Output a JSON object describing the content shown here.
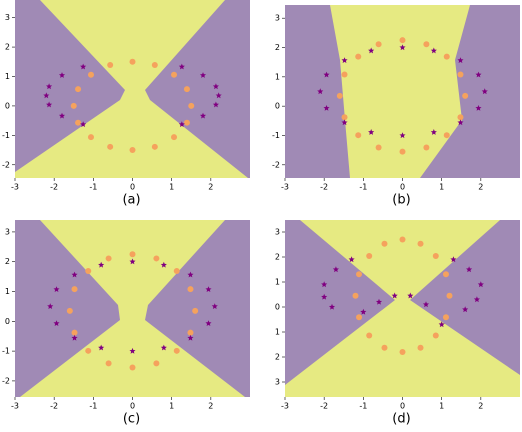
{
  "chart_data": [
    {
      "type": "scatter",
      "caption": "(a)",
      "xlim": [
        -3,
        3
      ],
      "ylim": [
        -2.45,
        3.6
      ],
      "xticks": [
        -3,
        -2,
        -1,
        0,
        1,
        2
      ],
      "yticks": [
        -2,
        -1,
        0,
        1,
        2,
        3
      ],
      "series": [
        {
          "color": "#f5a25d",
          "marker": "circle",
          "x": [
            1.5,
            1.39,
            1.06,
            0.57,
            0,
            -0.57,
            -1.06,
            -1.39,
            -1.5,
            -1.39,
            -1.06,
            -0.57,
            0,
            0.57,
            1.06,
            1.39
          ],
          "y": [
            0,
            0.57,
            1.06,
            1.39,
            1.5,
            1.39,
            1.06,
            0.57,
            0,
            -0.57,
            -1.06,
            -1.39,
            -1.5,
            -1.39,
            -1.06,
            -0.57
          ]
        },
        {
          "color": "#800080",
          "marker": "star",
          "x": [
            -1.26,
            -1.8,
            -2.13,
            -2.2,
            -2.13,
            -1.8,
            -1.26,
            1.26,
            1.8,
            2.13,
            2.2,
            2.13,
            1.8,
            1.26
          ],
          "y": [
            1.33,
            1.04,
            0.66,
            0.35,
            0.04,
            -0.34,
            -0.63,
            1.33,
            1.04,
            0.66,
            0.35,
            0.04,
            -0.34,
            -0.63
          ]
        }
      ]
    },
    {
      "type": "scatter",
      "caption": "(b)",
      "xlim": [
        -3,
        3
      ],
      "ylim": [
        -2.45,
        3.45
      ],
      "xticks": [
        -3,
        -2,
        -1,
        0,
        1,
        2
      ],
      "yticks": [
        -2,
        -1,
        0,
        1,
        2,
        3
      ],
      "series": [
        {
          "color": "#f5a25d",
          "marker": "circle",
          "x": [
            1.6,
            1.48,
            1.13,
            0.61,
            0,
            -0.61,
            -1.13,
            -1.48,
            -1.6,
            -1.48,
            -1.13,
            -0.61,
            0,
            0.61,
            1.13,
            1.48
          ],
          "y": [
            0.35,
            1.08,
            1.69,
            2.11,
            2.25,
            2.11,
            1.69,
            1.08,
            0.35,
            -0.38,
            -0.99,
            -1.41,
            -1.55,
            -1.41,
            -0.99,
            -0.38
          ]
        },
        {
          "color": "#800080",
          "marker": "star",
          "x": [
            2.1,
            1.94,
            1.48,
            0.8,
            0,
            -0.8,
            -1.48,
            -1.94,
            -2.1,
            -1.94,
            -1.48,
            -0.8,
            0,
            0.8,
            1.48,
            1.94
          ],
          "y": [
            0.5,
            1.07,
            1.56,
            1.89,
            2.0,
            1.89,
            1.56,
            1.07,
            0.5,
            -0.07,
            -0.56,
            -0.89,
            -1.0,
            -0.89,
            -0.56,
            -0.07
          ]
        }
      ]
    },
    {
      "type": "scatter",
      "caption": "(c)",
      "xlim": [
        -3,
        3
      ],
      "ylim": [
        -2.54,
        3.4
      ],
      "xticks": [
        -3,
        -2,
        -1,
        0,
        1,
        2
      ],
      "yticks": [
        -2,
        -1,
        0,
        1,
        2,
        3
      ],
      "series": [
        {
          "color": "#f5a25d",
          "marker": "circle",
          "x": [
            1.6,
            1.48,
            1.13,
            0.61,
            0,
            -0.61,
            -1.13,
            -1.48,
            -1.6,
            -1.48,
            -1.13,
            -0.61,
            0,
            0.61,
            1.13,
            1.48
          ],
          "y": [
            0.35,
            1.08,
            1.69,
            2.11,
            2.25,
            2.11,
            1.69,
            1.08,
            0.35,
            -0.38,
            -0.99,
            -1.41,
            -1.55,
            -1.41,
            -0.99,
            -0.38
          ]
        },
        {
          "color": "#800080",
          "marker": "star",
          "x": [
            2.1,
            1.94,
            1.48,
            0.8,
            0,
            -0.8,
            -1.48,
            -1.94,
            -2.1,
            -1.94,
            -1.48,
            -0.8,
            0,
            0.8,
            1.48,
            1.94
          ],
          "y": [
            0.5,
            1.07,
            1.56,
            1.89,
            2.0,
            1.89,
            1.56,
            1.07,
            0.5,
            -0.07,
            -0.56,
            -0.89,
            -1.0,
            -0.89,
            -0.56,
            -0.07
          ]
        }
      ]
    },
    {
      "type": "scatter",
      "caption": "(d)",
      "xlim": [
        -3,
        3
      ],
      "ylim": [
        -3.6,
        3.48
      ],
      "xticks": [
        -3,
        -2,
        -1,
        0,
        1,
        2
      ],
      "yticks": [
        3,
        2,
        1,
        0,
        {
          "value": -1,
          "label": "1"
        },
        {
          "value": -2,
          "label": "2"
        },
        {
          "value": -3,
          "label": "3"
        }
      ],
      "series": [
        {
          "color": "#f5a25d",
          "marker": "circle",
          "x": [
            1.2,
            1.11,
            0.85,
            0.46,
            0,
            -0.46,
            -0.85,
            -1.11,
            -1.2,
            -1.11,
            -0.85,
            -0.46,
            0,
            0.46,
            0.85,
            1.11
          ],
          "y": [
            0.45,
            1.31,
            2.04,
            2.53,
            2.7,
            2.53,
            2.04,
            1.31,
            0.45,
            -0.41,
            -1.14,
            -1.63,
            -1.8,
            -1.63,
            -1.14,
            -0.41
          ]
        },
        {
          "color": "#800080",
          "marker": "star",
          "x": [
            -1.3,
            -1.7,
            -2.0,
            -2.0,
            -1.8,
            1.3,
            1.7,
            2.0,
            1.9,
            1.6,
            -1.0,
            -0.6,
            -0.2,
            0.2,
            0.6,
            1.0
          ],
          "y": [
            1.9,
            1.5,
            0.9,
            0.4,
            0.0,
            1.9,
            1.5,
            0.9,
            0.3,
            -0.1,
            -0.2,
            0.2,
            0.45,
            0.45,
            0.1,
            -0.7
          ]
        }
      ]
    }
  ]
}
